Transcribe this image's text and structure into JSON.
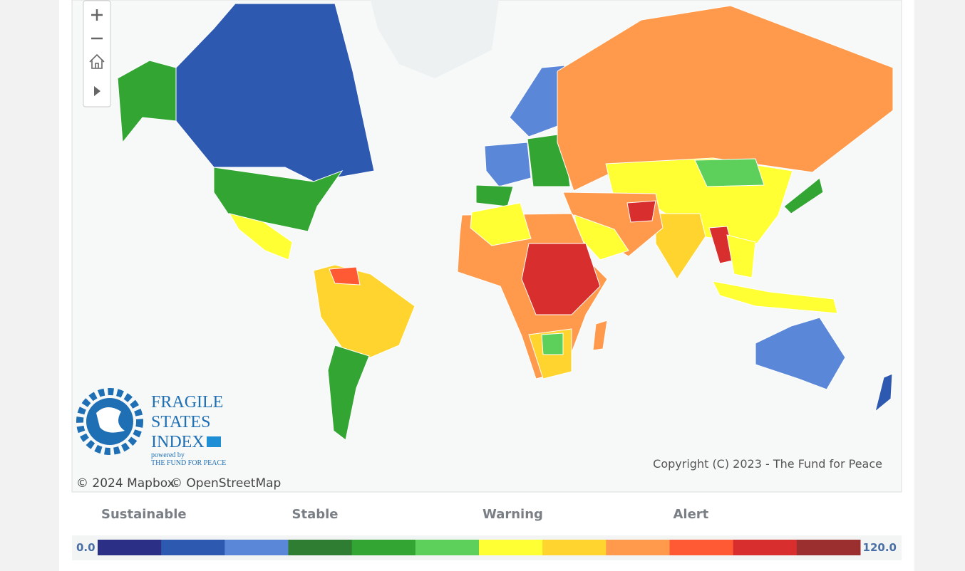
{
  "logo": {
    "title_lines": [
      "FRAGILE",
      "STATES",
      "INDEX"
    ],
    "powered_by": "powered by",
    "organization": "THE FUND FOR PEACE"
  },
  "attribution": {
    "mapbox": "© 2024 Mapbox",
    "osm": "© OpenStreetMap"
  },
  "copyright": "Copyright (C) 2023 - The Fund for Peace",
  "legend": {
    "categories": [
      "Sustainable",
      "Stable",
      "Warning",
      "Alert"
    ],
    "min_label": "0.0",
    "max_label": "120.0",
    "colors": [
      "#2b2f86",
      "#2e59b0",
      "#5b87d9",
      "#2e7d32",
      "#33a532",
      "#5cd05a",
      "#ffff33",
      "#ffd42e",
      "#ff9a4d",
      "#ff5a33",
      "#d92e2e",
      "#9b2e2e"
    ]
  }
}
